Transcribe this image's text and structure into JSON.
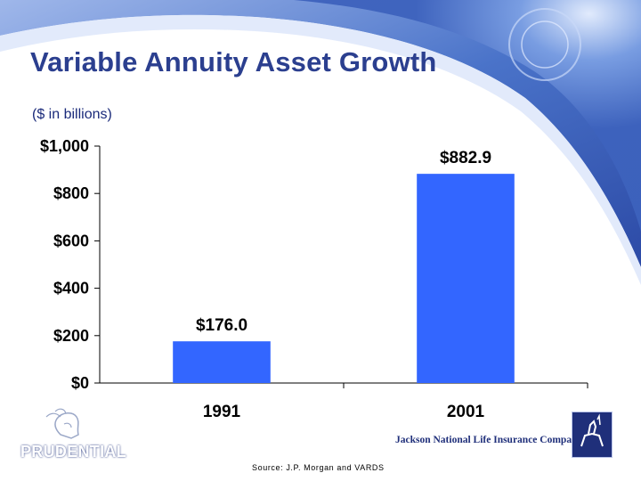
{
  "slide": {
    "title": "Variable Annuity Asset Growth",
    "subtitle": "($ in billions)",
    "source": "Source:  J.P. Morgan and VARDS"
  },
  "logos": {
    "prudential": "PRUDENTIAL",
    "jackson": "Jackson National Life Insurance Company®"
  },
  "colors": {
    "title": "#2b3f8f",
    "bar": "#3366ff",
    "background_swoosh": "#4a73c9"
  },
  "chart_data": {
    "type": "bar",
    "categories": [
      "1991",
      "2001"
    ],
    "values": [
      176.0,
      882.9
    ],
    "value_labels": [
      "$176.0",
      "$882.9"
    ],
    "ylim": [
      0,
      1000
    ],
    "y_ticks": [
      0,
      200,
      400,
      600,
      800,
      1000
    ],
    "y_tick_labels": [
      "$0",
      "$200",
      "$400",
      "$600",
      "$800",
      "$1,000"
    ],
    "title": "Variable Annuity Asset Growth",
    "xlabel": "",
    "ylabel": "($ in billions)",
    "grid": false,
    "legend": "none"
  }
}
